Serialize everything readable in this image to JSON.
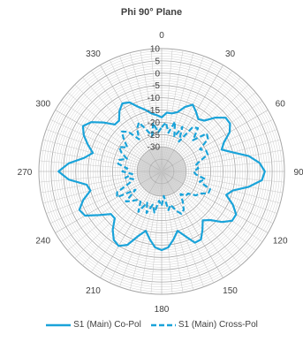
{
  "chart_data": {
    "type": "polar-line",
    "title": "Phi 90° Plane",
    "angle_ticks": [
      "0",
      "30",
      "60",
      "90",
      "120",
      "150",
      "180",
      "210",
      "240",
      "270",
      "300",
      "330"
    ],
    "radial_ticks": [
      10,
      5,
      0,
      -5,
      -10,
      -15,
      -20,
      -25,
      -30
    ],
    "radial_range": [
      -40,
      10
    ],
    "legend_position": "bottom",
    "colors": {
      "series": "#1aa3d9",
      "grid": "#a6a6a6",
      "fill": "#d9d9d9"
    },
    "series": [
      {
        "name": "S1 (Main) Co-Pol",
        "style": "solid",
        "theta": [
          0,
          5,
          10,
          15,
          20,
          25,
          30,
          35,
          40,
          45,
          50,
          55,
          60,
          65,
          70,
          75,
          80,
          85,
          90,
          95,
          100,
          105,
          110,
          115,
          120,
          125,
          130,
          135,
          140,
          145,
          150,
          155,
          160,
          165,
          170,
          175,
          180,
          185,
          190,
          195,
          200,
          205,
          210,
          215,
          220,
          225,
          230,
          235,
          240,
          245,
          250,
          255,
          260,
          265,
          270,
          275,
          280,
          285,
          290,
          295,
          300,
          305,
          310,
          315,
          320,
          325,
          330,
          335,
          340,
          345,
          350,
          355,
          360
        ],
        "r": [
          -18,
          -16,
          -16,
          -15,
          -12,
          -10,
          -12,
          -14,
          -13,
          -9,
          -6,
          -6,
          -8,
          -12,
          -14,
          -10,
          -4,
          0,
          2,
          1,
          -4,
          -10,
          -12,
          -8,
          -5,
          -5,
          -8,
          -12,
          -14,
          -11,
          -8,
          -8,
          -12,
          -15,
          -12,
          -9,
          -8,
          -9,
          -12,
          -15,
          -12,
          -7,
          -5,
          -6,
          -9,
          -13,
          -13,
          -9,
          -4,
          -3,
          -6,
          -10,
          -9,
          -2,
          2,
          -2,
          -8,
          -11,
          -8,
          -5,
          -3,
          -5,
          -9,
          -13,
          -13,
          -10,
          -8,
          -9,
          -12,
          -14,
          -16,
          -17,
          -18
        ]
      },
      {
        "name": "S1 (Main) Cross-Pol",
        "style": "dashed",
        "theta": [
          0,
          5,
          10,
          15,
          20,
          25,
          30,
          35,
          40,
          45,
          50,
          55,
          60,
          65,
          70,
          75,
          80,
          85,
          90,
          95,
          100,
          105,
          110,
          115,
          120,
          125,
          130,
          135,
          140,
          145,
          150,
          155,
          160,
          165,
          170,
          175,
          180,
          185,
          190,
          195,
          200,
          205,
          210,
          215,
          220,
          225,
          230,
          235,
          240,
          245,
          250,
          255,
          260,
          265,
          270,
          275,
          280,
          285,
          290,
          295,
          300,
          305,
          310,
          315,
          320,
          325,
          330,
          335,
          340,
          345,
          350,
          355,
          360
        ],
        "r": [
          -22,
          -20,
          -24,
          -19,
          -25,
          -20,
          -26,
          -18,
          -17,
          -22,
          -16,
          -17,
          -22,
          -20,
          -20,
          -24,
          -26,
          -25,
          -27,
          -26,
          -22,
          -24,
          -19,
          -19,
          -22,
          -23,
          -26,
          -26,
          -28,
          -25,
          -22,
          -21,
          -23,
          -26,
          -24,
          -30,
          -26,
          -28,
          -23,
          -26,
          -22,
          -26,
          -21,
          -25,
          -25,
          -23,
          -21,
          -27,
          -19,
          -20,
          -26,
          -28,
          -25,
          -28,
          -24,
          -26,
          -22,
          -22,
          -25,
          -22,
          -20,
          -23,
          -20,
          -17,
          -19,
          -24,
          -20,
          -18,
          -22,
          -25,
          -20,
          -24,
          -22
        ]
      }
    ]
  }
}
